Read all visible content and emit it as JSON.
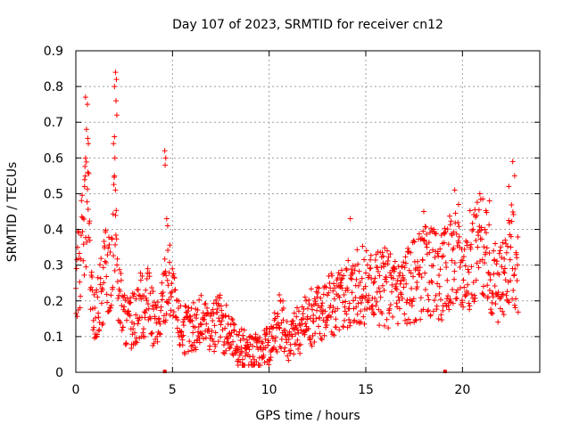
{
  "chart_data": {
    "type": "scatter",
    "title": "Day 107 of 2023, SRMTID for receiver cn12",
    "xlabel": "GPS time / hours",
    "ylabel": "SRMTID / TECUs",
    "xlim": [
      0,
      24
    ],
    "ylim": [
      0,
      0.9
    ],
    "xticks": [
      0,
      5,
      10,
      15,
      20
    ],
    "yticks": [
      0,
      0.1,
      0.2,
      0.3,
      0.4,
      0.5,
      0.6,
      0.7,
      0.8,
      0.9
    ],
    "grid": true,
    "marker": "+",
    "color": "#ff0000",
    "series": [
      {
        "name": "SRMTID",
        "trend": [
          [
            0.0,
            0.24
          ],
          [
            0.2,
            0.3
          ],
          [
            0.4,
            0.38
          ],
          [
            0.6,
            0.5
          ],
          [
            0.8,
            0.2
          ],
          [
            1.0,
            0.14
          ],
          [
            1.3,
            0.22
          ],
          [
            1.6,
            0.3
          ],
          [
            1.8,
            0.26
          ],
          [
            2.0,
            0.5
          ],
          [
            2.2,
            0.22
          ],
          [
            2.5,
            0.15
          ],
          [
            2.8,
            0.13
          ],
          [
            3.1,
            0.17
          ],
          [
            3.4,
            0.19
          ],
          [
            3.7,
            0.2
          ],
          [
            4.0,
            0.15
          ],
          [
            4.3,
            0.12
          ],
          [
            4.6,
            0.24
          ],
          [
            4.9,
            0.26
          ],
          [
            5.2,
            0.14
          ],
          [
            5.6,
            0.12
          ],
          [
            6.0,
            0.12
          ],
          [
            6.5,
            0.14
          ],
          [
            7.0,
            0.13
          ],
          [
            7.5,
            0.14
          ],
          [
            8.0,
            0.1
          ],
          [
            8.5,
            0.07
          ],
          [
            9.0,
            0.06
          ],
          [
            9.5,
            0.06
          ],
          [
            10.0,
            0.08
          ],
          [
            10.3,
            0.12
          ],
          [
            10.6,
            0.15
          ],
          [
            11.0,
            0.09
          ],
          [
            11.5,
            0.12
          ],
          [
            12.0,
            0.15
          ],
          [
            12.5,
            0.17
          ],
          [
            13.0,
            0.18
          ],
          [
            13.5,
            0.19
          ],
          [
            14.0,
            0.22
          ],
          [
            14.5,
            0.24
          ],
          [
            15.0,
            0.24
          ],
          [
            15.5,
            0.25
          ],
          [
            16.0,
            0.24
          ],
          [
            16.5,
            0.23
          ],
          [
            17.0,
            0.24
          ],
          [
            17.5,
            0.26
          ],
          [
            18.0,
            0.28
          ],
          [
            18.5,
            0.28
          ],
          [
            19.0,
            0.27
          ],
          [
            19.5,
            0.33
          ],
          [
            20.0,
            0.28
          ],
          [
            20.5,
            0.33
          ],
          [
            21.0,
            0.36
          ],
          [
            21.5,
            0.26
          ],
          [
            22.0,
            0.24
          ],
          [
            22.5,
            0.35
          ],
          [
            22.9,
            0.26
          ]
        ],
        "spikes": [
          [
            0.5,
            0.77
          ],
          [
            0.6,
            0.75
          ],
          [
            0.55,
            0.68
          ],
          [
            0.65,
            0.64
          ],
          [
            0.5,
            0.6
          ],
          [
            0.62,
            0.56
          ],
          [
            0.45,
            0.52
          ],
          [
            2.05,
            0.84
          ],
          [
            2.1,
            0.82
          ],
          [
            2.0,
            0.8
          ],
          [
            2.08,
            0.76
          ],
          [
            2.12,
            0.72
          ],
          [
            1.95,
            0.64
          ],
          [
            2.02,
            0.6
          ],
          [
            2.0,
            0.55
          ],
          [
            2.05,
            0.51
          ],
          [
            4.6,
            0.62
          ],
          [
            4.65,
            0.6
          ],
          [
            4.62,
            0.58
          ],
          [
            4.7,
            0.43
          ],
          [
            4.75,
            0.41
          ],
          [
            20.9,
            0.5
          ],
          [
            21.4,
            0.48
          ],
          [
            22.6,
            0.59
          ],
          [
            22.7,
            0.55
          ],
          [
            19.6,
            0.51
          ],
          [
            19.8,
            0.47
          ],
          [
            18.0,
            0.45
          ],
          [
            14.2,
            0.43
          ],
          [
            22.4,
            0.52
          ]
        ],
        "baseline_markers": [
          4.6,
          19.1
        ]
      }
    ]
  }
}
